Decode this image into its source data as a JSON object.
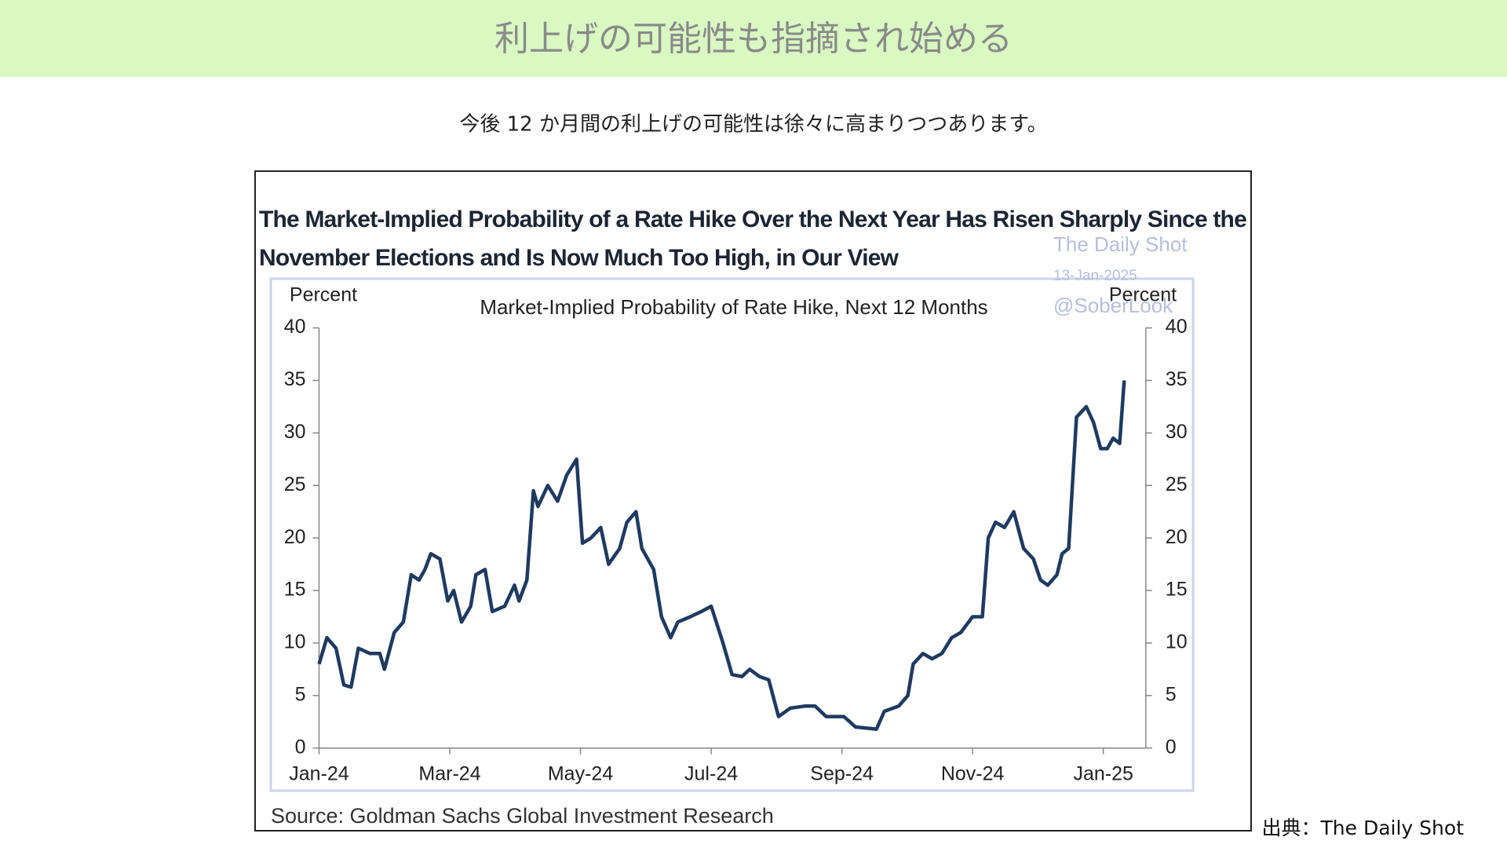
{
  "header": {
    "title": "利上げの可能性も指摘され始める",
    "subtitle": "今後 12 か月間の利上げの可能性は徐々に高まりつつあります。"
  },
  "credit": "出典：The Daily Shot",
  "watermark": [
    "The Daily Shot",
    "13-Jan-2025",
    "@SoberLook"
  ],
  "chart_data": {
    "type": "line",
    "title": "The Market-Implied Probability of a Rate Hike Over the Next Year Has Risen Sharply Since the November Elections and Is Now Much Too High, in Our View",
    "subtitle": "Market-Implied  Probability  of  Rate  Hike,  Next  12  Months",
    "ylabel": "Percent",
    "y2label": "Percent",
    "source": "Source: Goldman Sachs Global Investment Research",
    "x": [
      0,
      0.12,
      0.26,
      0.38,
      0.49,
      0.6,
      0.78,
      0.93,
      1,
      1.15,
      1.29,
      1.41,
      1.53,
      1.62,
      1.71,
      1.85,
      1.97,
      2.06,
      2.18,
      2.32,
      2.4,
      2.54,
      2.65,
      2.84,
      2.99,
      3.06,
      3.18,
      3.28,
      3.35,
      3.5,
      3.65,
      3.79,
      3.94,
      4.03,
      4.16,
      4.31,
      4.43,
      4.6,
      4.71,
      4.85,
      4.94,
      5.12,
      5.24,
      5.38,
      5.49,
      5.68,
      5.85,
      6,
      6.18,
      6.32,
      6.47,
      6.59,
      6.74,
      6.88,
      7.03,
      7.21,
      7.44,
      7.59,
      7.76,
      8.03,
      8.21,
      8.53,
      8.65,
      8.87,
      9.01,
      9.09,
      9.24,
      9.38,
      9.53,
      9.68,
      9.82,
      10,
      10.15,
      10.24,
      10.35,
      10.49,
      10.63,
      10.78,
      10.93,
      11.04,
      11.15,
      11.29,
      11.37,
      11.47,
      11.59,
      11.74,
      11.85,
      11.96,
      12.06,
      12.15,
      12.25,
      12.32
    ],
    "series": [
      {
        "name": "Market-Implied Probability of Rate Hike",
        "color": "#1f3a60",
        "values": [
          8,
          10.5,
          9.5,
          6,
          5.8,
          9.5,
          9,
          9,
          7.5,
          11,
          12,
          16.5,
          16,
          17,
          18.5,
          18,
          14,
          15,
          12,
          13.5,
          16.5,
          17,
          13,
          13.5,
          15.5,
          14,
          16,
          24.5,
          23,
          25,
          23.5,
          26,
          27.5,
          19.5,
          20,
          21,
          17.5,
          19,
          21.5,
          22.5,
          19,
          17,
          12.5,
          10.5,
          12,
          12.5,
          13,
          13.5,
          10,
          7,
          6.8,
          7.5,
          6.8,
          6.5,
          3,
          3.8,
          4,
          4,
          3,
          3,
          2,
          1.8,
          3.5,
          4,
          5,
          8,
          9,
          8.5,
          9,
          10.5,
          11,
          12.5,
          12.5,
          20,
          21.5,
          21,
          22.5,
          19,
          18,
          16,
          15.5,
          16.5,
          18.5,
          19,
          31.5,
          32.5,
          31,
          28.5,
          28.5,
          29.5,
          29,
          35
        ]
      }
    ],
    "xlim": [
      0,
      12.65
    ],
    "xticks": [
      {
        "value": 0,
        "label": "Jan-24"
      },
      {
        "value": 2,
        "label": "Mar-24"
      },
      {
        "value": 4,
        "label": "May-24"
      },
      {
        "value": 6,
        "label": "Jul-24"
      },
      {
        "value": 8,
        "label": "Sep-24"
      },
      {
        "value": 10,
        "label": "Nov-24"
      },
      {
        "value": 12,
        "label": "Jan-25"
      }
    ],
    "ylim": [
      0,
      40
    ],
    "yticks": [
      0,
      5,
      10,
      15,
      20,
      25,
      30,
      35,
      40
    ],
    "y2lim": [
      0,
      40
    ],
    "y2ticks": [
      0,
      5,
      10,
      15,
      20,
      25,
      30,
      35,
      40
    ]
  }
}
